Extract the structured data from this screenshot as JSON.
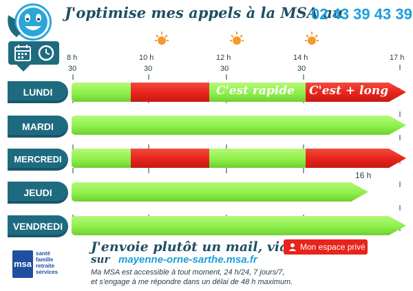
{
  "header": {
    "title": "J'optimise mes appels à la MSA au",
    "phone": "02 43 39 43 39"
  },
  "hours": [
    {
      "h": "8 h",
      "m": "30"
    },
    {
      "h": "10 h",
      "m": "30"
    },
    {
      "h": "12 h",
      "m": "30"
    },
    {
      "h": "14 h",
      "m": "30"
    },
    {
      "h": "17 h",
      "m": ""
    }
  ],
  "days": [
    {
      "label": "LUNDI"
    },
    {
      "label": "MARDI"
    },
    {
      "label": "MERCREDI"
    },
    {
      "label": "JEUDI"
    },
    {
      "label": "VENDREDI"
    }
  ],
  "bar_labels": {
    "fast": "C'est rapide",
    "long": "C'est + long",
    "thursday_end": "16 h"
  },
  "footer": {
    "mail_line1": "J'envoie plutôt un mail, via",
    "mail_line2_prefix": "sur",
    "website": "mayenne-orne-sarthe.msa.fr",
    "button": "Mon espace privé",
    "info_line1": "Ma MSA est accessible à tout moment, 24 h/24, 7 jours/7,",
    "info_line2": "et s'engage à me répondre dans un délai de 48 h maximum."
  },
  "logo": {
    "letters": "msa",
    "lines": [
      "santé",
      "famille",
      "retraite",
      "services"
    ]
  },
  "colors": {
    "dark_teal": "#1e6b80",
    "green": "#8ef04a",
    "red": "#e8231c",
    "phone_blue": "#1a9fd8",
    "sun": "#f39a2e"
  },
  "icons": [
    "smiley-phone-icon",
    "calendar-icon",
    "clock-icon",
    "sun-icon",
    "user-icon"
  ]
}
